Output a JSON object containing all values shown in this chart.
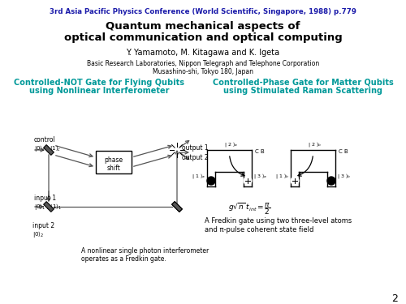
{
  "bg_color": "#ffffff",
  "header_text": "3rd Asia Pacific Physics Conference (World Scientific, Singapore, 1988) p.779",
  "header_color": "#1a1aaa",
  "title_line1": "Quantum mechanical aspects of",
  "title_line2": "optical communication and optical computing",
  "title_color": "#000000",
  "authors": "Y. Yamamoto, M. Kitagawa and K. Igeta",
  "affil1": "Basic Research Laboratories, Nippon Telegraph and Telephone Corporation",
  "affil2": "Musashino-shi, Tokyo 180, Japan",
  "left_heading1": "Controlled-NOT Gate for Flying Qubits",
  "left_heading2": "using Nonlinear Interferometer",
  "left_heading_color": "#009999",
  "right_heading1": "Controlled-Phase Gate for Matter Qubits",
  "right_heading2": "using Stimulated Raman Scattering",
  "right_heading_color": "#009999",
  "page_number": "2",
  "caption_left1": "A nonlinear single photon interferometer",
  "caption_left2": "operates as a Fredkin gate.",
  "caption_right1": "A Fredkin gate using two three-level atoms",
  "caption_right2": "and π-pulse coherent state field"
}
